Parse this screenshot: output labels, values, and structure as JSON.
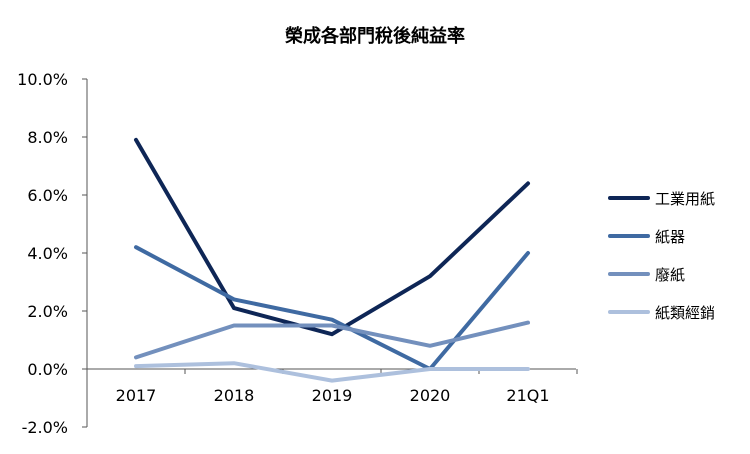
{
  "chart_data": {
    "type": "line",
    "title": "榮成各部門稅後純益率",
    "xlabel": "",
    "ylabel": "",
    "categories": [
      "2017",
      "2018",
      "2019",
      "2020",
      "21Q1"
    ],
    "ylim": [
      -0.02,
      0.1
    ],
    "yticks": [
      -0.02,
      0.0,
      0.02,
      0.04,
      0.06,
      0.08,
      0.1
    ],
    "ytick_labels": [
      "-2.0%",
      "0.0%",
      "2.0%",
      "4.0%",
      "6.0%",
      "8.0%",
      "10.0%"
    ],
    "grid": false,
    "legend_position": "right",
    "series": [
      {
        "name": "工業用紙",
        "color": "#0e2656",
        "values": [
          0.079,
          0.021,
          0.012,
          0.032,
          0.064
        ]
      },
      {
        "name": "紙器",
        "color": "#3f6aa2",
        "values": [
          0.042,
          0.024,
          0.017,
          0.0,
          0.04
        ]
      },
      {
        "name": "廢紙",
        "color": "#7390bd",
        "values": [
          0.004,
          0.015,
          0.015,
          0.008,
          0.016
        ]
      },
      {
        "name": "紙類經銷",
        "color": "#adc0dd",
        "values": [
          0.001,
          0.002,
          -0.004,
          0.0,
          0.0
        ]
      }
    ]
  }
}
